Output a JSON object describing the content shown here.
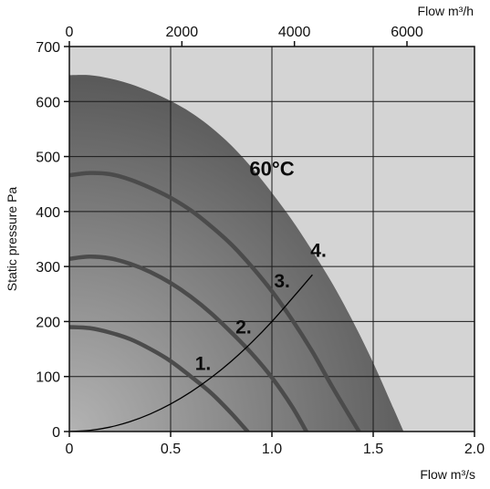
{
  "chart_data": {
    "type": "line",
    "title": "",
    "xlabel": "Flow m³/s",
    "ylabel": "Static pressure Pa",
    "x2label": "Flow m³/h",
    "xlim": [
      0,
      2.0
    ],
    "ylim": [
      0,
      700
    ],
    "x2lim": [
      0,
      7200
    ],
    "x_ticks": [
      "0",
      "0.5",
      "1.0",
      "1.5",
      "2.0"
    ],
    "x_tick_values": [
      0,
      0.5,
      1.0,
      1.5,
      2.0
    ],
    "x2_ticks": [
      "0",
      "2000",
      "4000",
      "6000"
    ],
    "x2_tick_values": [
      0,
      2000,
      4000,
      6000
    ],
    "y_ticks": [
      "0",
      "100",
      "200",
      "300",
      "400",
      "500",
      "600",
      "700"
    ],
    "y_tick_values": [
      0,
      100,
      200,
      300,
      400,
      500,
      600,
      700
    ],
    "grid": true,
    "temperature_label": "60°C",
    "series": [
      {
        "name": "1.",
        "x": [
          0,
          0.1,
          0.2,
          0.3,
          0.4,
          0.5,
          0.6,
          0.7,
          0.8,
          0.88
        ],
        "y": [
          190,
          188,
          180,
          168,
          150,
          128,
          100,
          70,
          33,
          0
        ]
      },
      {
        "name": "2.",
        "x": [
          0,
          0.1,
          0.2,
          0.3,
          0.4,
          0.5,
          0.6,
          0.7,
          0.8,
          0.9,
          1.0,
          1.1,
          1.17
        ],
        "y": [
          314,
          318,
          315,
          305,
          290,
          270,
          245,
          215,
          180,
          142,
          98,
          45,
          0
        ]
      },
      {
        "name": "3.",
        "x": [
          0,
          0.1,
          0.2,
          0.3,
          0.4,
          0.5,
          0.6,
          0.7,
          0.8,
          0.9,
          1.0,
          1.1,
          1.2,
          1.3,
          1.43
        ],
        "y": [
          466,
          470,
          468,
          458,
          443,
          425,
          402,
          373,
          340,
          300,
          255,
          203,
          145,
          80,
          0
        ]
      },
      {
        "name": "60°C",
        "x": [
          0,
          0.1,
          0.2,
          0.3,
          0.4,
          0.5,
          0.6,
          0.7,
          0.8,
          0.9,
          1.0,
          1.1,
          1.2,
          1.3,
          1.4,
          1.5,
          1.6,
          1.65
        ],
        "y": [
          648,
          648,
          642,
          632,
          618,
          601,
          580,
          553,
          520,
          480,
          434,
          384,
          328,
          268,
          200,
          125,
          42,
          0
        ]
      }
    ],
    "system_curve": {
      "x": [
        0,
        0.1,
        0.2,
        0.3,
        0.4,
        0.5,
        0.6,
        0.7,
        0.8,
        0.9,
        1.0,
        1.1,
        1.2
      ],
      "y": [
        0,
        2,
        8,
        18,
        32,
        50,
        72,
        98,
        128,
        162,
        200,
        242,
        285
      ]
    },
    "colors": {
      "background": "#d4d4d4",
      "grid": "#1a1a1a",
      "fill_dark": "#505050",
      "fill_light": "#b3b3b3",
      "curve": "#4b4b4b",
      "system_curve": "#000000"
    }
  }
}
